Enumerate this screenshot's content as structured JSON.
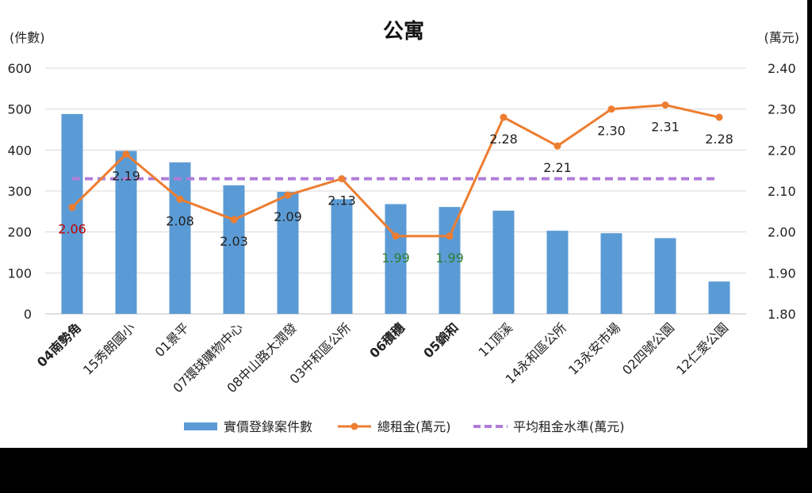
{
  "chart_data": {
    "type": "bar",
    "title": "公寓",
    "y_left_unit": "(件數)",
    "y_right_unit": "(萬元)",
    "ylim_left": [
      0,
      600
    ],
    "yticks_left": [
      "0",
      "100",
      "200",
      "300",
      "400",
      "500",
      "600"
    ],
    "ylim_right": [
      1.8,
      2.4
    ],
    "yticks_right": [
      "1.80",
      "1.90",
      "2.00",
      "2.10",
      "2.20",
      "2.30",
      "2.40"
    ],
    "grid": true,
    "legend_position": "bottom",
    "categories": [
      "04南勢角",
      "15秀朗國小",
      "01景平",
      "07環球購物中心",
      "08中山路大潤發",
      "03中和區公所",
      "06積穗",
      "05錦和",
      "11頂溪",
      "14永和區公所",
      "13永安市場",
      "02四號公園",
      "12仁愛公園"
    ],
    "category_colors": [
      "#c00000",
      "#222222",
      "#222222",
      "#222222",
      "#222222",
      "#222222",
      "#2e7d32",
      "#2e7d32",
      "#222222",
      "#222222",
      "#222222",
      "#222222",
      "#222222"
    ],
    "category_bold": [
      true,
      false,
      false,
      false,
      false,
      false,
      true,
      true,
      false,
      false,
      false,
      false,
      false
    ],
    "series": [
      {
        "name": "實價登錄案件數",
        "kind": "bar",
        "axis": "left",
        "color": "#5b9bd5",
        "values": [
          488,
          398,
          370,
          314,
          298,
          280,
          268,
          261,
          252,
          203,
          197,
          185,
          79
        ]
      },
      {
        "name": "總租金(萬元)",
        "kind": "line",
        "axis": "right",
        "color": "#ed7d31",
        "values": [
          2.06,
          2.19,
          2.08,
          2.03,
          2.09,
          2.13,
          1.99,
          1.99,
          2.28,
          2.21,
          2.3,
          2.31,
          2.28
        ],
        "labels": [
          "2.06",
          "2.19",
          "2.08",
          "2.03",
          "2.09",
          "2.13",
          "1.99",
          "1.99",
          "2.28",
          "2.21",
          "2.30",
          "2.31",
          "2.28"
        ],
        "label_colors": [
          "#c00000",
          "#222222",
          "#222222",
          "#222222",
          "#222222",
          "#222222",
          "#2e7d32",
          "#2e7d32",
          "#222222",
          "#222222",
          "#222222",
          "#222222",
          "#222222"
        ]
      },
      {
        "name": "平均租金水準(萬元)",
        "kind": "dashed-line",
        "axis": "right",
        "color": "#b07cd8",
        "value": 2.13
      }
    ]
  }
}
